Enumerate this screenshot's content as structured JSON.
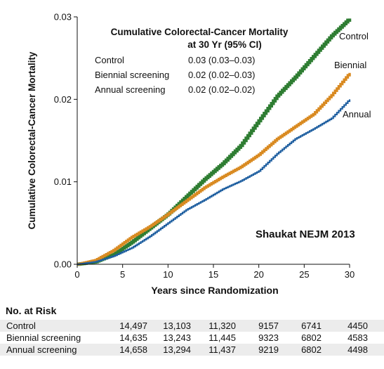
{
  "chart_data": {
    "type": "line",
    "title": "",
    "xlabel": "Years since Randomization",
    "ylabel": "Cumulative Colorectal-Cancer Mortality",
    "xlim": [
      0,
      30
    ],
    "ylim": [
      0,
      0.03
    ],
    "x_ticks": [
      "0",
      "5",
      "10",
      "15",
      "20",
      "25",
      "30"
    ],
    "y_ticks": [
      "0.00",
      "0.01",
      "0.02",
      "0.03"
    ],
    "series": [
      {
        "name": "Control",
        "color": "#2e7d32",
        "x": [
          0,
          2,
          4,
          6,
          8,
          10,
          12,
          14,
          16,
          18,
          20,
          22,
          24,
          26,
          28,
          30
        ],
        "y": [
          0,
          0.0003,
          0.0012,
          0.0027,
          0.0044,
          0.0061,
          0.0082,
          0.0103,
          0.0122,
          0.0144,
          0.0174,
          0.0204,
          0.0227,
          0.0252,
          0.0277,
          0.0298
        ]
      },
      {
        "name": "Biennial",
        "color": "#d98a21",
        "x": [
          0,
          2,
          4,
          6,
          8,
          10,
          12,
          14,
          16,
          18,
          20,
          22,
          24,
          26,
          28,
          30
        ],
        "y": [
          0,
          0.0005,
          0.0017,
          0.0033,
          0.0046,
          0.0061,
          0.0077,
          0.0093,
          0.0106,
          0.0118,
          0.0133,
          0.0152,
          0.0167,
          0.0182,
          0.0205,
          0.0232
        ]
      },
      {
        "name": "Annual",
        "color": "#1f5fa0",
        "x": [
          0,
          2,
          4,
          6,
          8,
          10,
          12,
          14,
          16,
          18,
          20,
          22,
          24,
          26,
          28,
          30
        ],
        "y": [
          0,
          0.0003,
          0.001,
          0.002,
          0.0034,
          0.005,
          0.0066,
          0.0078,
          0.0091,
          0.0101,
          0.0113,
          0.0134,
          0.0152,
          0.0164,
          0.0177,
          0.02
        ]
      }
    ],
    "annotation": {
      "title_line1": "Cumulative Colorectal-Cancer Mortality",
      "title_line2": "at 30 Yr (95% CI)",
      "rows": [
        {
          "label": "Control",
          "value": "0.03 (0.03–0.03)"
        },
        {
          "label": "Biennial screening",
          "value": "0.02 (0.02–0.03)"
        },
        {
          "label": "Annual screening",
          "value": "0.02 (0.02–0.02)"
        }
      ]
    },
    "watermark": "Shaukat NEJM 2013"
  },
  "risk_table": {
    "title": "No. at Risk",
    "rows": [
      {
        "label": "Control",
        "values": [
          "14,497",
          "13,103",
          "11,320",
          "9157",
          "6741",
          "4450"
        ]
      },
      {
        "label": "Biennial screening",
        "values": [
          "14,635",
          "13,243",
          "11,445",
          "9323",
          "6802",
          "4583"
        ]
      },
      {
        "label": "Annual screening",
        "values": [
          "14,658",
          "13,294",
          "11,437",
          "9219",
          "6802",
          "4498"
        ]
      }
    ]
  }
}
